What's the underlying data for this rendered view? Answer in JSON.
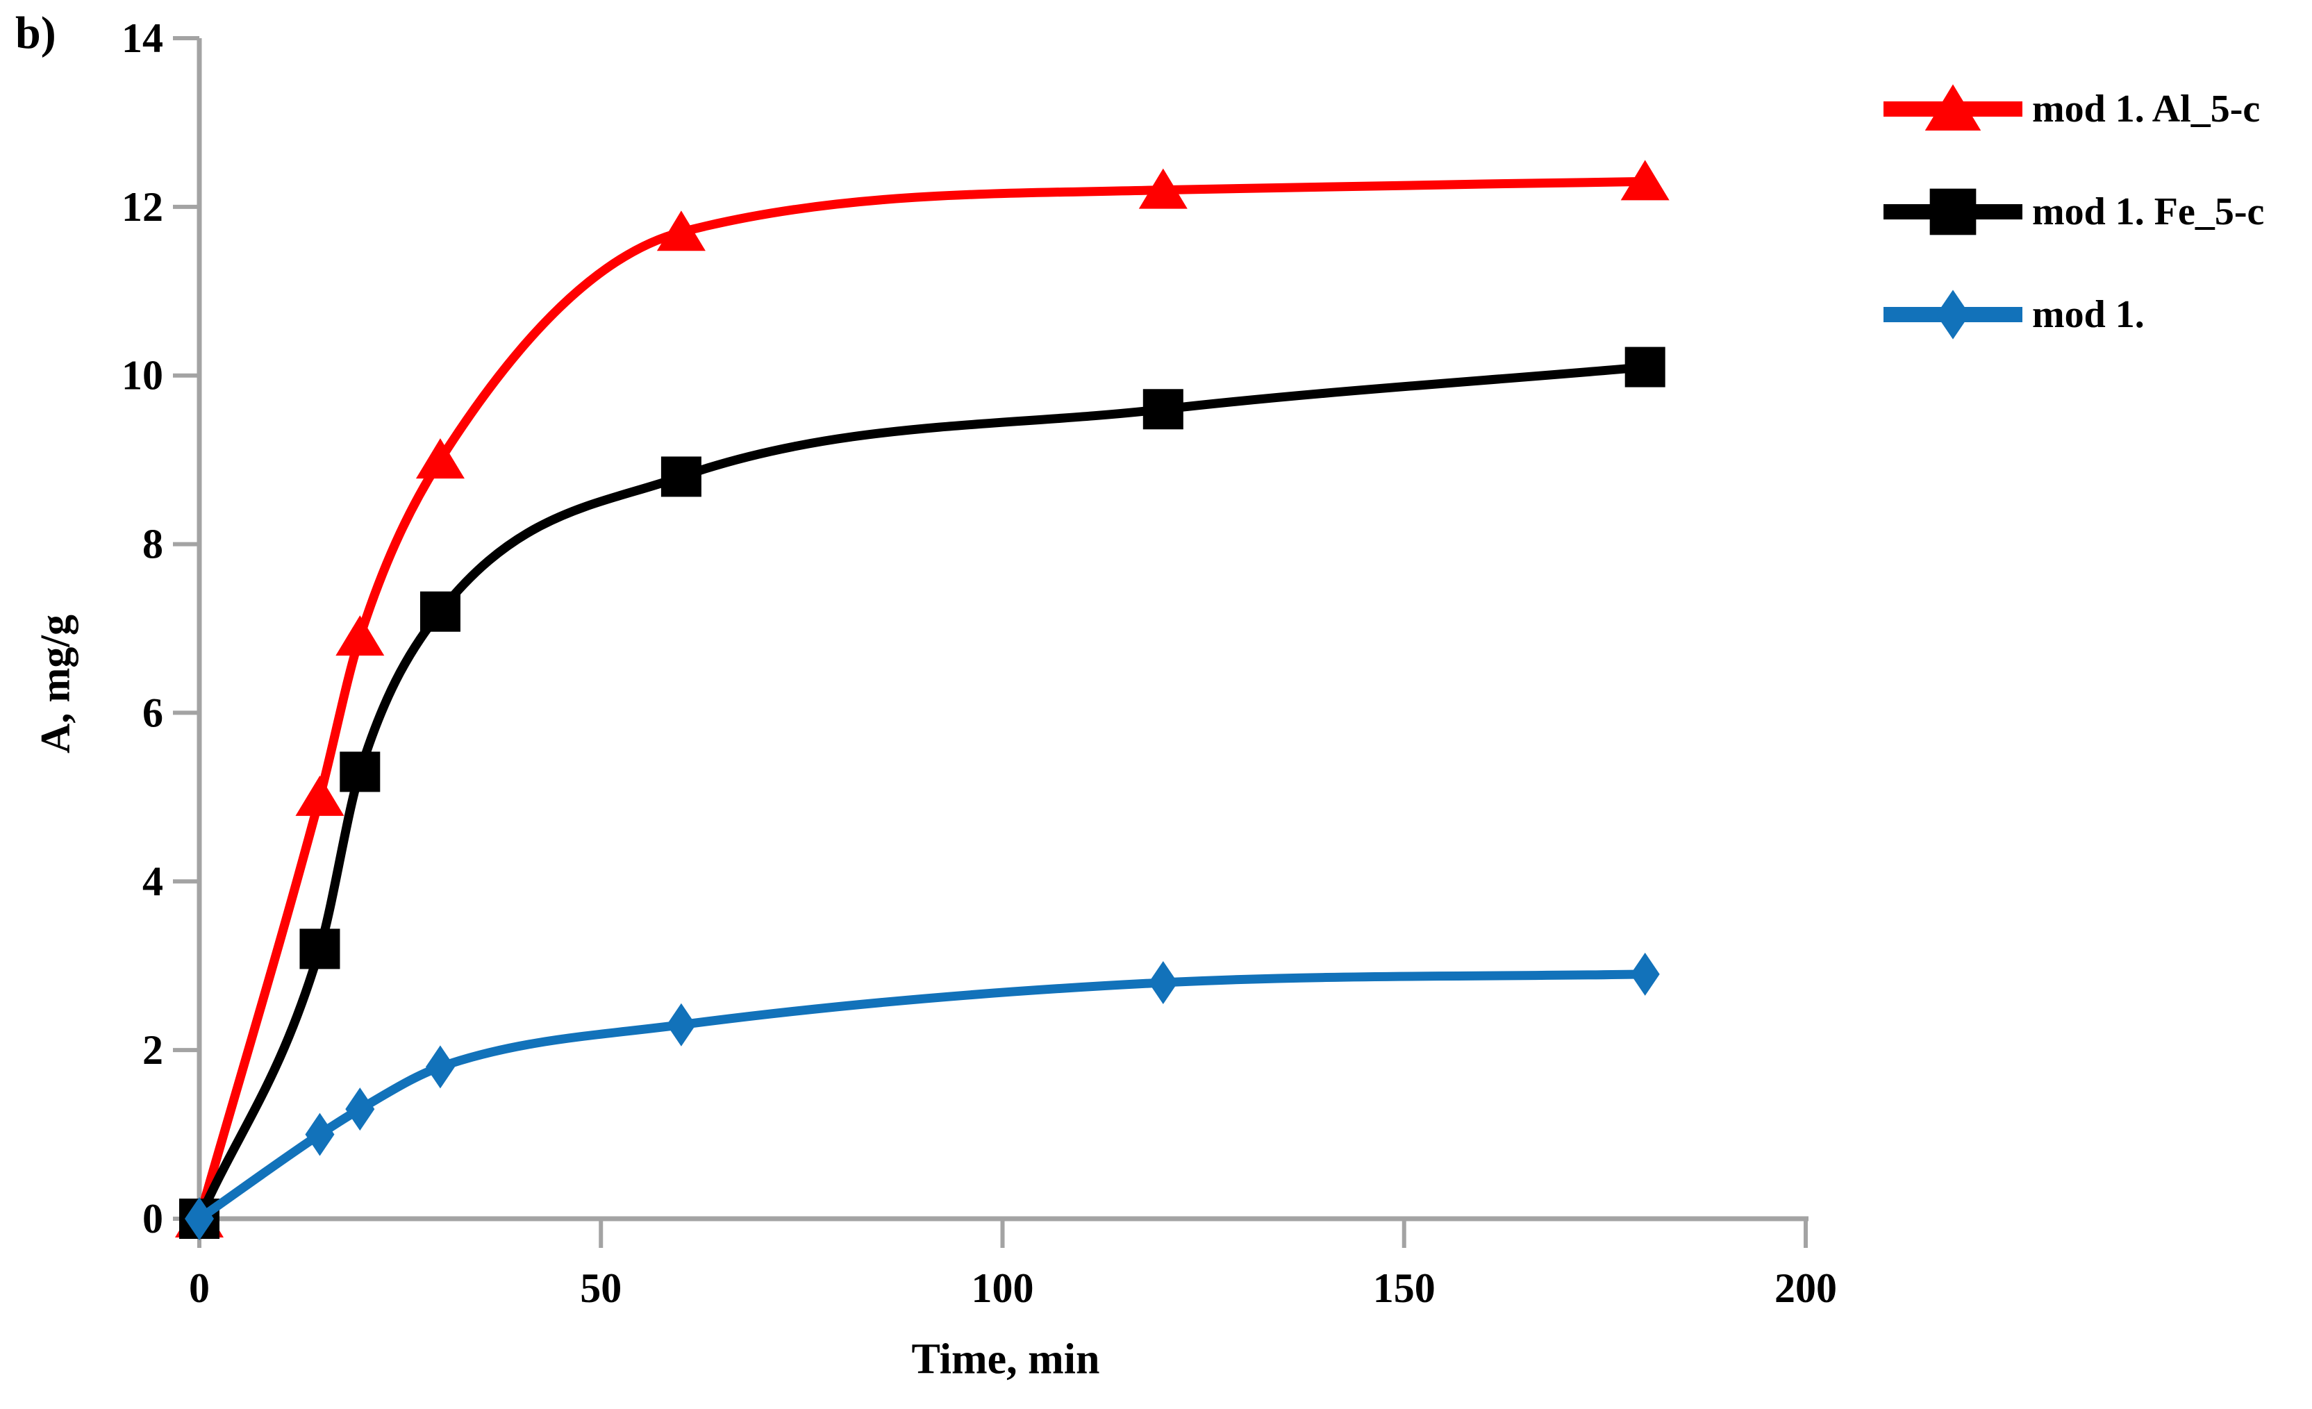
{
  "panel_label": "b)",
  "chart_data": {
    "type": "line",
    "title": "",
    "xlabel": "Time, min",
    "ylabel": "A, mg/g",
    "x": [
      0,
      15,
      20,
      30,
      60,
      120,
      180
    ],
    "series": [
      {
        "name": "mod 1. Al_5-c",
        "color": "#FF0000",
        "marker": "triangle",
        "values": [
          0,
          5.0,
          6.9,
          9.0,
          11.7,
          12.2,
          12.3
        ]
      },
      {
        "name": "mod 1. Fe_5-c",
        "color": "#000000",
        "marker": "square",
        "values": [
          0,
          3.2,
          5.3,
          7.2,
          8.8,
          9.6,
          10.1
        ]
      },
      {
        "name": "mod 1.",
        "color": "#1272BA",
        "marker": "diamond",
        "values": [
          0,
          1.0,
          1.3,
          1.8,
          2.3,
          2.8,
          2.9
        ]
      }
    ],
    "xlim": [
      0,
      200
    ],
    "ylim": [
      0,
      14
    ],
    "x_ticks": [
      0,
      50,
      100,
      150,
      200
    ],
    "y_ticks": [
      0,
      2,
      4,
      6,
      8,
      10,
      12,
      14
    ],
    "grid": false,
    "legend_position": "top-right",
    "axis_color": "#A3A3A3",
    "tick_label_color": "#000000"
  }
}
